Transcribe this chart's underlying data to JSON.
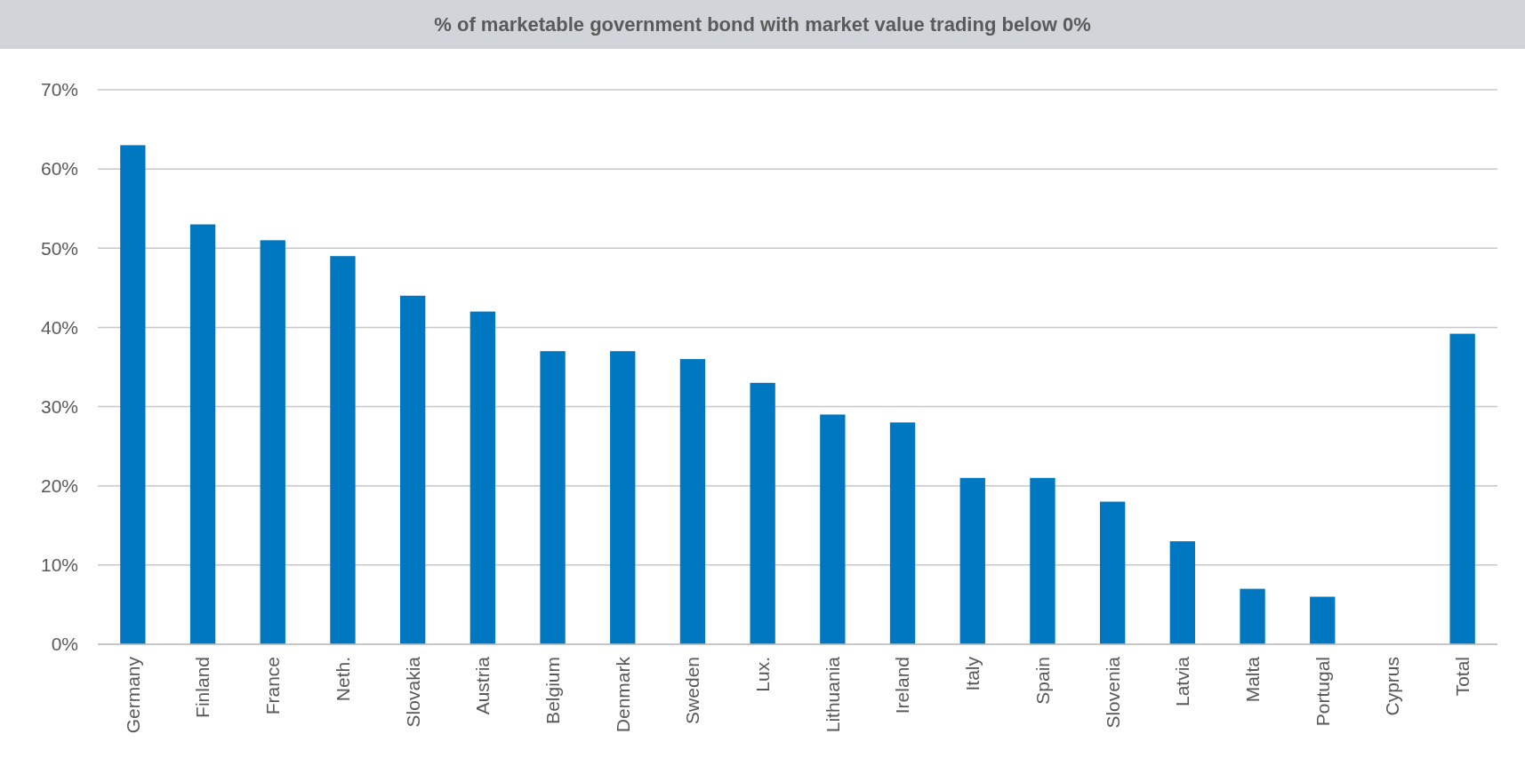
{
  "chart_data": {
    "type": "bar",
    "title": "% of marketable government bond with market value trading below 0%",
    "categories": [
      "Germany",
      "Finland",
      "France",
      "Neth.",
      "Slovakia",
      "Austria",
      "Belgium",
      "Denmark",
      "Sweden",
      "Lux.",
      "Lithuania",
      "Ireland",
      "Italy",
      "Spain",
      "Slovenia",
      "Latvia",
      "Malta",
      "Portugal",
      "Cyprus",
      "Total"
    ],
    "values": [
      63,
      53,
      51,
      49,
      44,
      42,
      37,
      37,
      36,
      33,
      29,
      28,
      21,
      21,
      18,
      13,
      7,
      6,
      0,
      39.2
    ],
    "color": "#0078c1",
    "ylim": [
      0,
      70
    ],
    "yticks": [
      {
        "value": 0,
        "label": "0%"
      },
      {
        "value": 10,
        "label": "10%"
      },
      {
        "value": 20,
        "label": "20%"
      },
      {
        "value": 30,
        "label": "30%"
      },
      {
        "value": 40,
        "label": "40%"
      },
      {
        "value": 50,
        "label": "50%"
      },
      {
        "value": 60,
        "label": "60%"
      },
      {
        "value": 70,
        "label": "70%"
      }
    ],
    "grid": "y"
  }
}
